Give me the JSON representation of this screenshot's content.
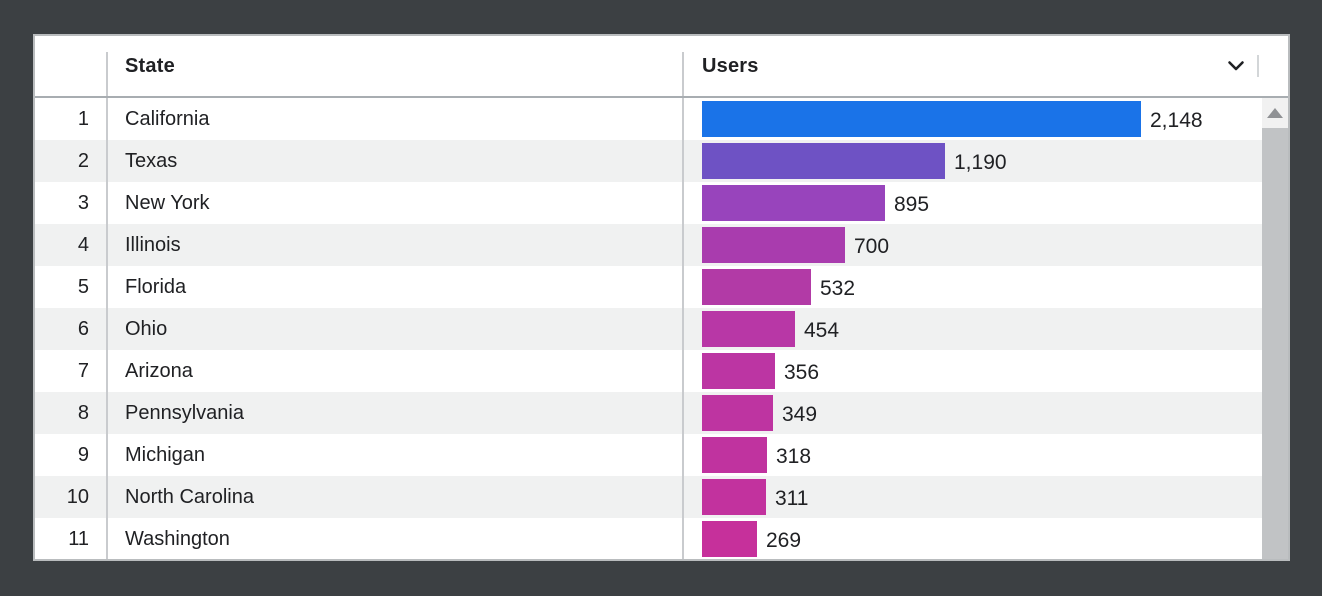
{
  "table": {
    "columns": [
      {
        "label": "State"
      },
      {
        "label": "Users"
      }
    ],
    "sort_icon": "chevron-down-icon"
  },
  "chart_data": {
    "type": "bar",
    "orientation": "horizontal",
    "title": "",
    "xlabel": "",
    "ylabel": "",
    "legend": "none",
    "grid": "off",
    "max_value": 2148,
    "ranks": [
      "1",
      "2",
      "3",
      "4",
      "5",
      "6",
      "7",
      "8",
      "9",
      "10",
      "11"
    ],
    "categories": [
      "California",
      "Texas",
      "New York",
      "Illinois",
      "Florida",
      "Ohio",
      "Arizona",
      "Pennsylvania",
      "Michigan",
      "North Carolina",
      "Washington"
    ],
    "values": [
      2148,
      1190,
      895,
      700,
      532,
      454,
      356,
      349,
      318,
      311,
      269
    ],
    "value_labels": [
      "2,148",
      "1,190",
      "895",
      "700",
      "532",
      "454",
      "356",
      "349",
      "318",
      "311",
      "269"
    ],
    "bar_colors": [
      "#1a73e8",
      "#6e52c4",
      "#9844bc",
      "#a93cae",
      "#b23aa6",
      "#b837a6",
      "#bc35a3",
      "#be34a1",
      "#c0339f",
      "#c2329e",
      "#c6309b"
    ]
  },
  "colors": {
    "page_background": "#3c4043",
    "panel_background": "#ffffff",
    "panel_border": "#b9bcbe",
    "row_stripe": "#f0f1f1",
    "text": "#202124",
    "header_underline": "#a8adb1",
    "column_divider": "#c9cbce",
    "scrollbar_track": "#f1f1f1",
    "scrollbar_thumb": "#c1c3c5"
  }
}
